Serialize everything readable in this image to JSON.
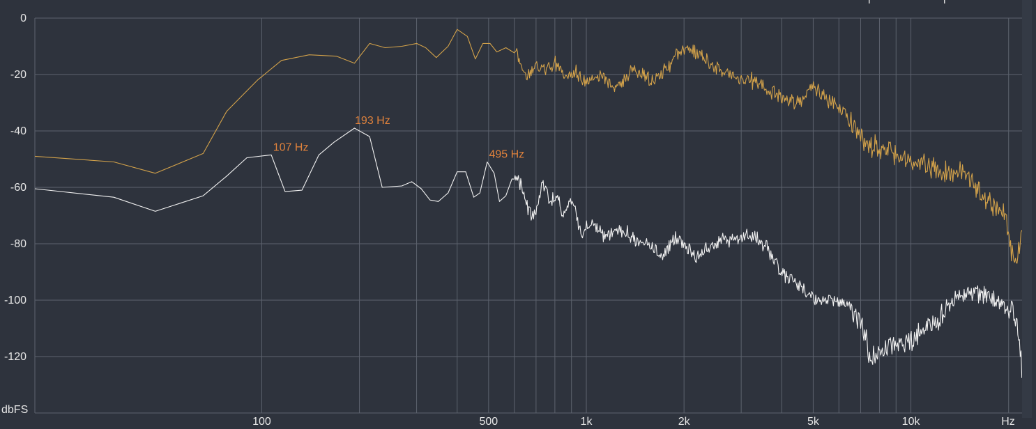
{
  "chart_data": {
    "type": "line",
    "title": "",
    "xlabel": "Hz",
    "ylabel": "dbFS",
    "x_scale": "log",
    "xlim": [
      20,
      22000
    ],
    "ylim": [
      -140,
      0
    ],
    "grid": true,
    "y_ticks": [
      0,
      -20,
      -40,
      -60,
      -80,
      -100,
      -120
    ],
    "y_tick_labels": [
      "0",
      "-20",
      "-40",
      "-60",
      "-80",
      "-100",
      "-120"
    ],
    "x_tick_labels": [
      {
        "value": 100,
        "label": "100"
      },
      {
        "value": 500,
        "label": "500"
      },
      {
        "value": 1000,
        "label": "1k"
      },
      {
        "value": 2000,
        "label": "2k"
      },
      {
        "value": 5000,
        "label": "5k"
      },
      {
        "value": 10000,
        "label": "10k"
      }
    ],
    "x_grid_values": [
      100,
      200,
      300,
      400,
      500,
      600,
      700,
      800,
      900,
      1000,
      2000,
      3000,
      4000,
      5000,
      6000,
      7000,
      8000,
      9000,
      10000,
      20000
    ],
    "colors": {
      "background": "#2e333d",
      "grid": "#5d636e",
      "series_upper": "#d3a24a",
      "series_lower": "#f2f2f2",
      "peak_label": "#e0823c"
    },
    "peak_labels": [
      {
        "freq": 107,
        "db": -48.5,
        "label": "107 Hz"
      },
      {
        "freq": 193,
        "db": -39,
        "label": "193 Hz"
      },
      {
        "freq": 495,
        "db": -51,
        "label": "495 Hz"
      }
    ],
    "series": [
      {
        "points": [
          [
            20,
            -49
          ],
          [
            35,
            -51
          ],
          [
            47,
            -55
          ],
          [
            66,
            -48
          ],
          [
            78,
            -33
          ],
          [
            97,
            -22
          ],
          [
            115,
            -15
          ],
          [
            140,
            -13
          ],
          [
            170,
            -13.5
          ],
          [
            193,
            -16
          ],
          [
            215,
            -9
          ],
          [
            240,
            -10.5
          ],
          [
            270,
            -10
          ],
          [
            300,
            -9
          ],
          [
            320,
            -10.5
          ],
          [
            345,
            -14
          ],
          [
            375,
            -10
          ],
          [
            400,
            -4
          ],
          [
            430,
            -6.5
          ],
          [
            455,
            -14.5
          ],
          [
            480,
            -9
          ],
          [
            505,
            -9
          ],
          [
            530,
            -12
          ],
          [
            565,
            -10.5
          ],
          [
            610,
            -13
          ],
          [
            660,
            -20.5
          ],
          [
            700,
            -16
          ],
          [
            750,
            -19
          ],
          [
            800,
            -16
          ],
          [
            860,
            -21
          ],
          [
            930,
            -19
          ],
          [
            1000,
            -23
          ],
          [
            1100,
            -20
          ],
          [
            1200,
            -25
          ],
          [
            1400,
            -19
          ],
          [
            1600,
            -22
          ],
          [
            1800,
            -17
          ],
          [
            1900,
            -13
          ],
          [
            2000,
            -11.5
          ],
          [
            2200,
            -12
          ],
          [
            2500,
            -17
          ],
          [
            2800,
            -21
          ],
          [
            3200,
            -22
          ],
          [
            3600,
            -25
          ],
          [
            4000,
            -28
          ],
          [
            4500,
            -30
          ],
          [
            5000,
            -24
          ],
          [
            5600,
            -29
          ],
          [
            6300,
            -34
          ],
          [
            7000,
            -42
          ],
          [
            7500,
            -45
          ],
          [
            8500,
            -47
          ],
          [
            9500,
            -50
          ],
          [
            11000,
            -52
          ],
          [
            12500,
            -55
          ],
          [
            14000,
            -54
          ],
          [
            15500,
            -58
          ],
          [
            17000,
            -65
          ],
          [
            18500,
            -67
          ],
          [
            19500,
            -70
          ],
          [
            20500,
            -84
          ],
          [
            21200,
            -86
          ],
          [
            21600,
            -80
          ],
          [
            22000,
            -75
          ]
        ]
      },
      {
        "points": [
          [
            20,
            -60.5
          ],
          [
            35,
            -63.5
          ],
          [
            47,
            -68.5
          ],
          [
            66,
            -63
          ],
          [
            78,
            -56
          ],
          [
            90,
            -49.5
          ],
          [
            107,
            -48.5
          ],
          [
            118,
            -61.5
          ],
          [
            133,
            -61
          ],
          [
            150,
            -48.5
          ],
          [
            167,
            -44
          ],
          [
            193,
            -39
          ],
          [
            215,
            -42
          ],
          [
            235,
            -60
          ],
          [
            270,
            -59.5
          ],
          [
            290,
            -58
          ],
          [
            310,
            -60.5
          ],
          [
            330,
            -64.5
          ],
          [
            350,
            -65
          ],
          [
            375,
            -62
          ],
          [
            400,
            -54.5
          ],
          [
            425,
            -54.5
          ],
          [
            450,
            -63.5
          ],
          [
            470,
            -62
          ],
          [
            495,
            -51
          ],
          [
            520,
            -55
          ],
          [
            540,
            -65
          ],
          [
            565,
            -63
          ],
          [
            590,
            -57
          ],
          [
            620,
            -57
          ],
          [
            650,
            -66
          ],
          [
            680,
            -71
          ],
          [
            700,
            -68
          ],
          [
            735,
            -58
          ],
          [
            770,
            -64
          ],
          [
            810,
            -63
          ],
          [
            850,
            -70
          ],
          [
            900,
            -64
          ],
          [
            960,
            -76
          ],
          [
            1050,
            -73
          ],
          [
            1150,
            -77
          ],
          [
            1300,
            -75
          ],
          [
            1500,
            -80
          ],
          [
            1700,
            -84
          ],
          [
            1900,
            -78
          ],
          [
            2200,
            -85
          ],
          [
            2500,
            -80
          ],
          [
            2800,
            -78
          ],
          [
            3200,
            -77
          ],
          [
            3600,
            -81
          ],
          [
            4000,
            -91
          ],
          [
            4500,
            -95
          ],
          [
            5000,
            -99
          ],
          [
            5500,
            -100
          ],
          [
            6000,
            -101
          ],
          [
            6500,
            -103
          ],
          [
            7000,
            -107
          ],
          [
            7500,
            -120
          ],
          [
            8000,
            -119
          ],
          [
            9000,
            -116
          ],
          [
            10000,
            -114
          ],
          [
            11000,
            -111
          ],
          [
            12000,
            -107
          ],
          [
            13500,
            -100
          ],
          [
            15000,
            -97
          ],
          [
            17000,
            -98
          ],
          [
            19000,
            -100
          ],
          [
            20500,
            -104
          ],
          [
            21300,
            -111
          ],
          [
            21800,
            -119
          ],
          [
            22000,
            -129
          ]
        ]
      }
    ]
  }
}
